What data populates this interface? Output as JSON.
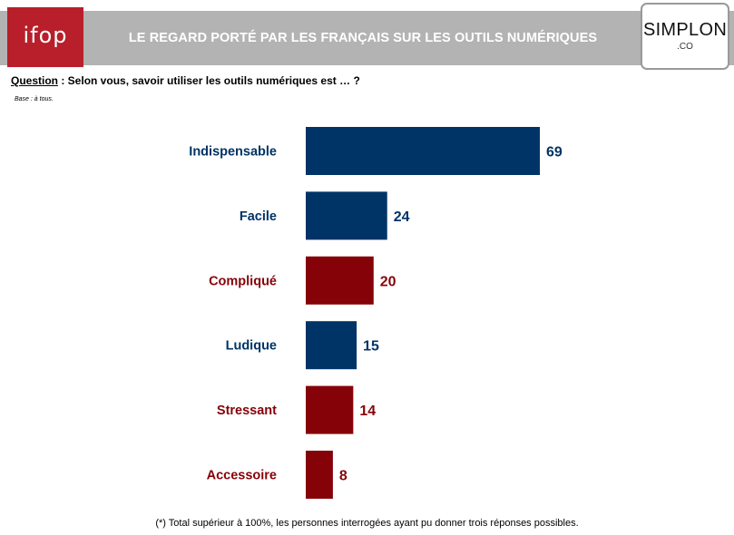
{
  "header": {
    "title": "LE REGARD PORTÉ PAR LES FRANÇAIS SUR LES OUTILS NUMÉRIQUES",
    "left_logo": "ifop",
    "right_logo": "SIMPLON",
    "right_logo_suffix": ".CO"
  },
  "question": {
    "label": "Question",
    "text": " : Selon vous, savoir utiliser les outils numériques est … ?"
  },
  "base": "Base : à tous.",
  "footnote": "(*) Total supérieur à 100%, les personnes interrogées ayant pu donner trois réponses possibles.",
  "colors": {
    "positive": "#003366",
    "negative": "#850308",
    "ifop": "#b81f2a",
    "header": "#b3b3b3"
  },
  "chart_data": {
    "type": "bar",
    "orientation": "horizontal",
    "categories": [
      "Indispensable",
      "Facile",
      "Compliqué",
      "Ludique",
      "Stressant",
      "Accessoire"
    ],
    "values": [
      69,
      24,
      20,
      15,
      14,
      8
    ],
    "category_tone": [
      "positive",
      "positive",
      "negative",
      "positive",
      "negative",
      "negative"
    ],
    "title": "",
    "xlabel": "",
    "ylabel": "",
    "xlim": [
      0,
      69
    ],
    "grid": false,
    "legend": "none"
  }
}
